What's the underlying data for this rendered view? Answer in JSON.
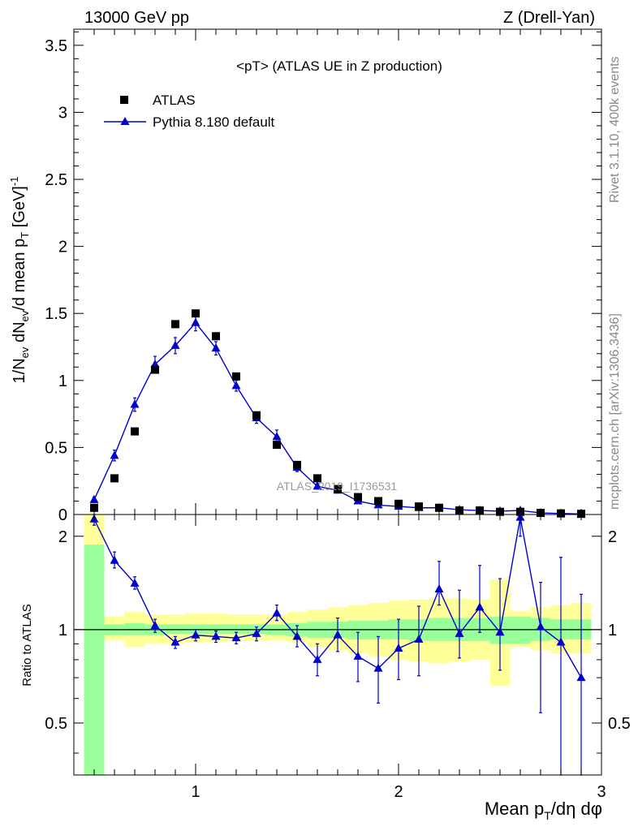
{
  "header": {
    "energy_label": "13000 GeV pp",
    "process_label": "Z (Drell-Yan)"
  },
  "side_labels": {
    "rivet": "Rivet 3.1.10,  400k events",
    "mcplots": "mcplots.cern.ch [arXiv:1306.3436]"
  },
  "watermark": "ATLAS_2019_I1736531",
  "colors": {
    "mc": "#0000cc",
    "data": "#000000",
    "band_inner": "#99ff99",
    "band_outer": "#ffff99"
  },
  "chart_data": [
    {
      "type": "scatter",
      "title": "<pT> (ATLAS UE in Z production)",
      "xlabel": "Mean p_T/dη dφ",
      "ylabel": "1/N_ev dN_ev/d mean p_T [GeV]^-1",
      "xlim": [
        0.4,
        3.0
      ],
      "ylim": [
        0,
        3.62
      ],
      "yticks": [
        0,
        0.5,
        1,
        1.5,
        2,
        2.5,
        3,
        3.5
      ],
      "ytick_labels": [
        "0",
        "0.5",
        "1",
        "1.5",
        "2",
        "2.5",
        "3",
        "3.5"
      ],
      "legend_position": "top-left",
      "series": [
        {
          "name": "ATLAS",
          "marker": "square",
          "x": [
            0.5,
            0.6,
            0.7,
            0.8,
            0.9,
            1.0,
            1.1,
            1.2,
            1.3,
            1.4,
            1.5,
            1.6,
            1.7,
            1.8,
            1.9,
            2.0,
            2.1,
            2.2,
            2.3,
            2.4,
            2.5,
            2.6,
            2.7,
            2.8,
            2.9
          ],
          "y": [
            0.05,
            0.27,
            0.62,
            1.08,
            1.42,
            1.5,
            1.33,
            1.03,
            0.74,
            0.52,
            0.37,
            0.27,
            0.19,
            0.13,
            0.1,
            0.08,
            0.06,
            0.05,
            0.03,
            0.03,
            0.02,
            0.02,
            0.012,
            0.008,
            0.005
          ]
        },
        {
          "name": "Pythia 8.180 default",
          "marker": "triangle",
          "x": [
            0.5,
            0.6,
            0.7,
            0.8,
            0.9,
            1.0,
            1.1,
            1.2,
            1.3,
            1.4,
            1.5,
            1.6,
            1.7,
            1.8,
            1.9,
            2.0,
            2.1,
            2.2,
            2.3,
            2.4,
            2.5,
            2.6,
            2.7,
            2.8,
            2.9
          ],
          "y": [
            0.11,
            0.44,
            0.82,
            1.12,
            1.26,
            1.43,
            1.24,
            0.96,
            0.72,
            0.58,
            0.35,
            0.21,
            0.18,
            0.1,
            0.07,
            0.06,
            0.05,
            0.05,
            0.035,
            0.03,
            0.025,
            0.03,
            0.012,
            0.008,
            0.004
          ],
          "err": [
            0.02,
            0.04,
            0.05,
            0.06,
            0.06,
            0.06,
            0.05,
            0.04,
            0.04,
            0.05,
            0.03,
            0.02,
            0.02,
            0.01,
            0.01,
            0.01,
            0.01,
            0.01,
            0.005,
            0.005,
            0.005,
            0.005,
            0.003,
            0.003,
            0.002
          ]
        }
      ]
    },
    {
      "type": "line",
      "title": "",
      "xlabel": "Mean p_T/dη dφ",
      "ylabel": "Ratio to ATLAS",
      "xlim": [
        0.4,
        3.0
      ],
      "ylim": [
        0.34,
        2.35
      ],
      "yscale": "log",
      "yticks": [
        0.5,
        1,
        2
      ],
      "ytick_labels": [
        "0.5",
        "1",
        "2"
      ],
      "xticks": [
        1,
        2,
        3
      ],
      "xtick_labels": [
        "1",
        "2",
        "3"
      ],
      "reference_line": 1,
      "series": [
        {
          "name": "Pythia 8.180 default / ATLAS",
          "x": [
            0.5,
            0.6,
            0.7,
            0.8,
            0.9,
            1.0,
            1.1,
            1.2,
            1.3,
            1.4,
            1.5,
            1.6,
            1.7,
            1.8,
            1.9,
            2.0,
            2.1,
            2.2,
            2.3,
            2.4,
            2.5,
            2.6,
            2.7,
            2.8,
            2.9
          ],
          "y": [
            2.27,
            1.67,
            1.41,
            1.03,
            0.91,
            0.96,
            0.95,
            0.94,
            0.97,
            1.13,
            0.95,
            0.8,
            0.96,
            0.82,
            0.75,
            0.87,
            0.93,
            1.35,
            0.97,
            1.18,
            0.98,
            2.3,
            1.02,
            0.91,
            0.7
          ],
          "err_low": [
            0.1,
            0.09,
            0.06,
            0.05,
            0.04,
            0.04,
            0.04,
            0.04,
            0.05,
            0.06,
            0.07,
            0.09,
            0.11,
            0.14,
            0.17,
            0.18,
            0.22,
            0.15,
            0.16,
            0.2,
            0.24,
            0.3,
            0.48,
            0.8,
            0.44
          ],
          "err_high": [
            0.15,
            0.11,
            0.07,
            0.05,
            0.04,
            0.04,
            0.04,
            0.04,
            0.05,
            0.07,
            0.08,
            0.1,
            0.13,
            0.16,
            0.2,
            0.21,
            0.26,
            0.31,
            0.37,
            0.43,
            0.48,
            0.2,
            0.4,
            0.8,
            0.6
          ]
        }
      ],
      "bands": {
        "x_edges": [
          0.45,
          0.55,
          0.65,
          0.75,
          0.85,
          0.95,
          1.05,
          1.15,
          1.25,
          1.35,
          1.45,
          1.55,
          1.65,
          1.75,
          1.85,
          1.95,
          2.05,
          2.15,
          2.25,
          2.35,
          2.45,
          2.55,
          2.65,
          2.75,
          2.85,
          2.95
        ],
        "inner_low": [
          0.3,
          0.96,
          0.96,
          0.96,
          0.97,
          0.97,
          0.97,
          0.97,
          0.97,
          0.96,
          0.95,
          0.94,
          0.94,
          0.93,
          0.93,
          0.93,
          0.92,
          0.92,
          0.92,
          0.92,
          0.9,
          0.9,
          0.92,
          0.93,
          0.93
        ],
        "inner_high": [
          1.88,
          1.04,
          1.05,
          1.04,
          1.04,
          1.04,
          1.04,
          1.04,
          1.04,
          1.04,
          1.05,
          1.06,
          1.06,
          1.07,
          1.07,
          1.08,
          1.08,
          1.09,
          1.09,
          1.09,
          1.1,
          1.1,
          1.09,
          1.08,
          1.08
        ],
        "outer_low": [
          0.3,
          0.92,
          0.88,
          0.9,
          0.9,
          0.91,
          0.91,
          0.92,
          0.92,
          0.92,
          0.91,
          0.88,
          0.86,
          0.84,
          0.82,
          0.8,
          0.79,
          0.78,
          0.79,
          0.8,
          0.66,
          0.88,
          0.86,
          0.84,
          0.84
        ],
        "outer_high": [
          2.35,
          1.1,
          1.14,
          1.12,
          1.12,
          1.13,
          1.13,
          1.12,
          1.12,
          1.12,
          1.14,
          1.16,
          1.18,
          1.2,
          1.22,
          1.24,
          1.25,
          1.26,
          1.26,
          1.25,
          1.45,
          1.15,
          1.18,
          1.2,
          1.22
        ]
      }
    }
  ]
}
